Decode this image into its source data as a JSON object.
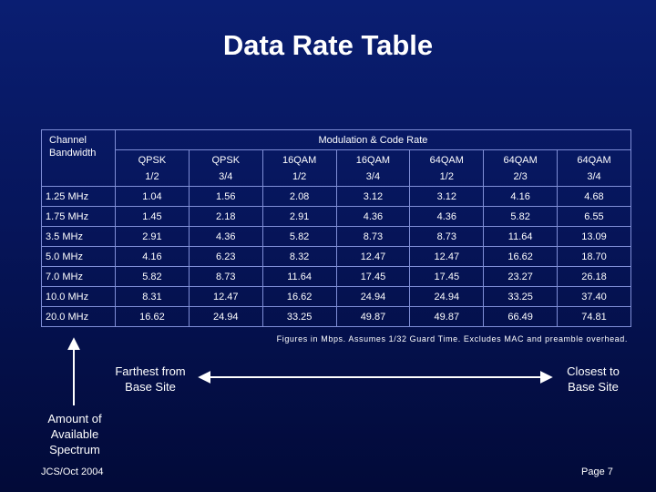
{
  "slide": {
    "title": "Data Rate Table",
    "footnote": "Figures in Mbps. Assumes 1/32 Guard Time. Excludes MAC and preamble overhead.",
    "farthest_label": "Farthest from Base Site",
    "closest_label": "Closest to Base Site",
    "amount_label": "Amount of Available Spectrum",
    "footer_left": "JCS/Oct 2004",
    "footer_right": "Page 7"
  },
  "table": {
    "bandwidth_header": "Channel Bandwidth",
    "modulation_header": "Modulation & Code Rate",
    "columns": [
      {
        "mod": "QPSK",
        "rate": "1/2"
      },
      {
        "mod": "QPSK",
        "rate": "3/4"
      },
      {
        "mod": "16QAM",
        "rate": "1/2"
      },
      {
        "mod": "16QAM",
        "rate": "3/4"
      },
      {
        "mod": "64QAM",
        "rate": "1/2"
      },
      {
        "mod": "64QAM",
        "rate": "2/3"
      },
      {
        "mod": "64QAM",
        "rate": "3/4"
      }
    ],
    "rows": [
      {
        "bandwidth": "1.25 MHz",
        "values": [
          "1.04",
          "1.56",
          "2.08",
          "3.12",
          "3.12",
          "4.16",
          "4.68"
        ]
      },
      {
        "bandwidth": "1.75 MHz",
        "values": [
          "1.45",
          "2.18",
          "2.91",
          "4.36",
          "4.36",
          "5.82",
          "6.55"
        ]
      },
      {
        "bandwidth": "3.5 MHz",
        "values": [
          "2.91",
          "4.36",
          "5.82",
          "8.73",
          "8.73",
          "11.64",
          "13.09"
        ]
      },
      {
        "bandwidth": "5.0 MHz",
        "values": [
          "4.16",
          "6.23",
          "8.32",
          "12.47",
          "12.47",
          "16.62",
          "18.70"
        ]
      },
      {
        "bandwidth": "7.0 MHz",
        "values": [
          "5.82",
          "8.73",
          "11.64",
          "17.45",
          "17.45",
          "23.27",
          "26.18"
        ]
      },
      {
        "bandwidth": "10.0 MHz",
        "values": [
          "8.31",
          "12.47",
          "16.62",
          "24.94",
          "24.94",
          "33.25",
          "37.40"
        ]
      },
      {
        "bandwidth": "20.0 MHz",
        "values": [
          "16.62",
          "24.94",
          "33.25",
          "49.87",
          "49.87",
          "66.49",
          "74.81"
        ]
      }
    ]
  },
  "colors": {
    "background_top": "#0a1e72",
    "background_bottom": "#020a38",
    "grid_line": "#7f8ed6",
    "text": "#ffffff"
  }
}
